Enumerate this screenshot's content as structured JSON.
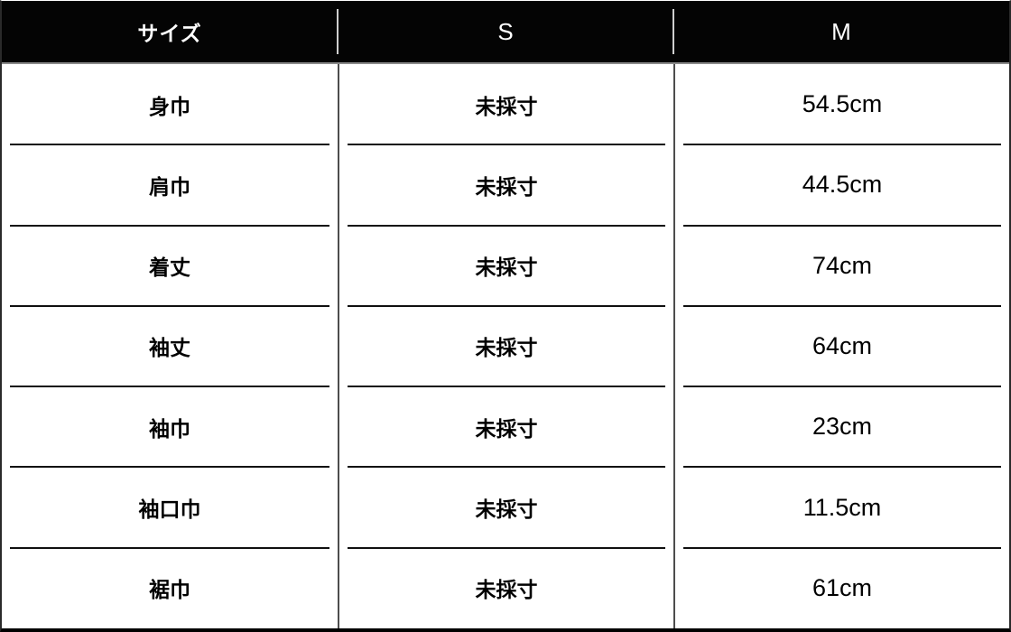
{
  "table": {
    "headers": [
      "サイズ",
      "S",
      "M"
    ],
    "rows": [
      {
        "label": "身巾",
        "s": "未採寸",
        "m": "54.5cm"
      },
      {
        "label": "肩巾",
        "s": "未採寸",
        "m": "44.5cm"
      },
      {
        "label": "着丈",
        "s": "未採寸",
        "m": "74cm"
      },
      {
        "label": "袖丈",
        "s": "未採寸",
        "m": "64cm"
      },
      {
        "label": "袖巾",
        "s": "未採寸",
        "m": "23cm"
      },
      {
        "label": "袖口巾",
        "s": "未採寸",
        "m": "11.5cm"
      },
      {
        "label": "裾巾",
        "s": "未採寸",
        "m": "61cm"
      }
    ],
    "colors": {
      "header_bg": "#040404",
      "header_text": "#ffffff",
      "header_divider": "#cfcfcf",
      "body_bg": "#ffffff",
      "body_text": "#000000",
      "column_divider": "#4d4d4d",
      "row_separator": "#101010",
      "outer_border": "#000000"
    }
  }
}
